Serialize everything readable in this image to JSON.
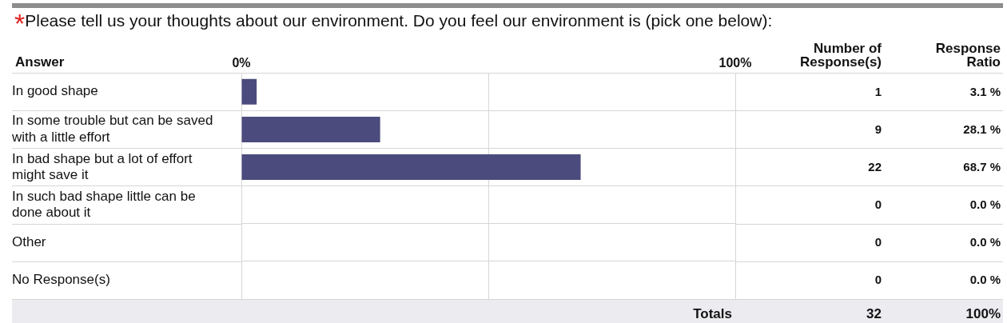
{
  "chart_data": {
    "type": "bar",
    "orientation": "horizontal",
    "title": "$^{*}$Please tell us your thoughts about our environment. Do you feel our environment is (pick one below):",
    "ylabel": "Answer",
    "categories": [
      "In good shape",
      "In some trouble but can be saved with a little effort",
      "In bad shape but a lot of effort might save it",
      "In such bad shape little can be done about it",
      "Other",
      "No Response(s)"
    ],
    "values": [
      3.1,
      28.1,
      68.7,
      0,
      0,
      0
    ],
    "color": "#4b4b7d",
    "xlim": [
      0,
      100
    ],
    "xticks": [
      {
        "value": 0,
        "label": "0%"
      },
      {
        "value": 50,
        "label": null
      },
      {
        "value": 100,
        "label": "100%"
      }
    ],
    "grid": true,
    "annotations": [
      "Number of Response(s)",
      "Response Ratio",
      "1",
      "9",
      "22",
      "0",
      "0",
      "0",
      "3.1 %",
      "28.1 %",
      "68.7 %",
      "0.0 %",
      "0.0 %",
      "0.0 %",
      "Totals",
      "32",
      "100%"
    ]
  }
}
